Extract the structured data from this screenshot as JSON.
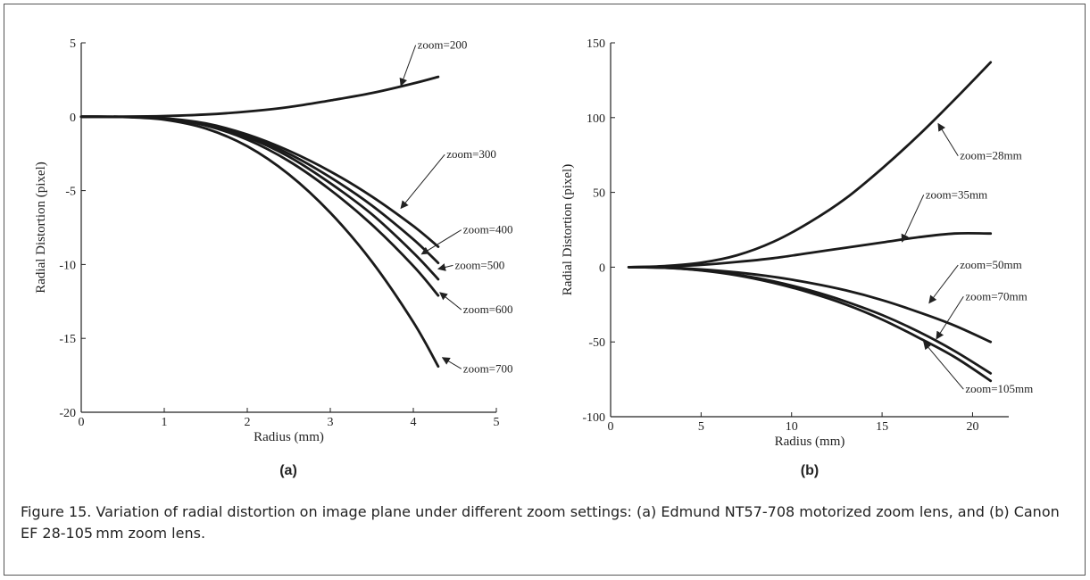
{
  "caption": "Figure 15. Variation of radial distortion on image plane under different zoom settings: (a) Edmund NT57-708 motorized zoom lens, and (b) Canon EF 28-105 mm zoom lens.",
  "chart_data": [
    {
      "type": "line",
      "panel_label": "(a)",
      "xlabel": "Radius (mm)",
      "ylabel": "Radial Distortion (pixel)",
      "xlim": [
        0,
        5
      ],
      "ylim": [
        -20,
        5
      ],
      "xticks": [
        0,
        1,
        2,
        3,
        4,
        5
      ],
      "yticks": [
        5,
        0,
        -5,
        -10,
        -15,
        -20
      ],
      "grid": false,
      "series": [
        {
          "name": "zoom=200",
          "x": [
            0,
            0.5,
            1,
            1.5,
            2,
            2.5,
            3,
            3.5,
            4,
            4.3
          ],
          "y": [
            0,
            0.01,
            0.05,
            0.15,
            0.35,
            0.65,
            1.1,
            1.6,
            2.25,
            2.7
          ]
        },
        {
          "name": "zoom=300",
          "x": [
            0,
            0.5,
            1,
            1.5,
            2,
            2.5,
            3,
            3.5,
            4,
            4.3
          ],
          "y": [
            0,
            -0.01,
            -0.1,
            -0.45,
            -1.2,
            -2.3,
            -3.7,
            -5.4,
            -7.4,
            -8.8
          ]
        },
        {
          "name": "zoom=400",
          "x": [
            0,
            0.5,
            1,
            1.5,
            2,
            2.5,
            3,
            3.5,
            4,
            4.3
          ],
          "y": [
            0,
            -0.01,
            -0.11,
            -0.5,
            -1.3,
            -2.5,
            -4.1,
            -6.0,
            -8.3,
            -9.9
          ]
        },
        {
          "name": "zoom=500",
          "x": [
            0,
            0.5,
            1,
            1.5,
            2,
            2.5,
            3,
            3.5,
            4,
            4.3
          ],
          "y": [
            0,
            -0.01,
            -0.12,
            -0.55,
            -1.4,
            -2.7,
            -4.5,
            -6.6,
            -9.2,
            -11.0
          ]
        },
        {
          "name": "zoom=600",
          "x": [
            0,
            0.5,
            1,
            1.5,
            2,
            2.5,
            3,
            3.5,
            4,
            4.3
          ],
          "y": [
            0,
            -0.01,
            -0.13,
            -0.6,
            -1.55,
            -3.0,
            -4.95,
            -7.3,
            -10.1,
            -12.1
          ]
        },
        {
          "name": "zoom=700",
          "x": [
            0,
            0.5,
            1,
            1.5,
            2,
            2.5,
            3,
            3.5,
            4,
            4.3
          ],
          "y": [
            0,
            -0.02,
            -0.2,
            -0.8,
            -2.0,
            -3.9,
            -6.5,
            -9.8,
            -13.9,
            -16.9
          ]
        }
      ],
      "annotations": [
        {
          "text": "zoom=200",
          "x": 4.05,
          "y": 4.6,
          "tx": 3.85,
          "ty": 2.1
        },
        {
          "text": "zoom=300",
          "x": 4.4,
          "y": -2.8,
          "tx": 3.85,
          "ty": -6.2
        },
        {
          "text": "zoom=400",
          "x": 4.6,
          "y": -7.9,
          "tx": 4.1,
          "ty": -9.3
        },
        {
          "text": "zoom=500",
          "x": 4.5,
          "y": -10.3,
          "tx": 4.3,
          "ty": -10.3
        },
        {
          "text": "zoom=600",
          "x": 4.6,
          "y": -13.3,
          "tx": 4.32,
          "ty": -11.9
        },
        {
          "text": "zoom=700",
          "x": 4.6,
          "y": -17.3,
          "tx": 4.35,
          "ty": -16.3
        }
      ]
    },
    {
      "type": "line",
      "panel_label": "(b)",
      "xlabel": "Radius (mm)",
      "ylabel": "Radial Distortion (pixel)",
      "xlim": [
        0,
        22
      ],
      "ylim": [
        -100,
        150
      ],
      "xticks": [
        0,
        5,
        10,
        15,
        20
      ],
      "yticks": [
        150,
        100,
        50,
        0,
        -50,
        -100
      ],
      "grid": false,
      "series": [
        {
          "name": "zoom=28mm",
          "x": [
            1,
            3,
            5,
            7,
            9,
            11,
            13,
            15,
            17,
            19,
            21
          ],
          "y": [
            0,
            0.8,
            3,
            8,
            17,
            30,
            46,
            66,
            88,
            112,
            137
          ]
        },
        {
          "name": "zoom=35mm",
          "x": [
            1,
            3,
            5,
            7,
            9,
            11,
            13,
            15,
            17,
            19,
            21
          ],
          "y": [
            0,
            0.4,
            1.5,
            3.5,
            6,
            9.5,
            13,
            16.5,
            20,
            22.5,
            22.5
          ]
        },
        {
          "name": "zoom=50mm",
          "x": [
            1,
            3,
            5,
            7,
            9,
            11,
            13,
            15,
            17,
            19,
            21
          ],
          "y": [
            0,
            -0.3,
            -1.5,
            -3.5,
            -6.5,
            -10.5,
            -15.5,
            -22,
            -30,
            -39,
            -50
          ]
        },
        {
          "name": "zoom=70mm",
          "x": [
            1,
            3,
            5,
            7,
            9,
            11,
            13,
            15,
            17,
            19,
            21
          ],
          "y": [
            0,
            -0.4,
            -2,
            -5,
            -9.5,
            -15.5,
            -23,
            -32,
            -43,
            -56,
            -71
          ]
        },
        {
          "name": "zoom=105mm",
          "x": [
            1,
            3,
            5,
            7,
            9,
            11,
            13,
            15,
            17,
            19,
            21
          ],
          "y": [
            0,
            -0.4,
            -2.2,
            -5.5,
            -10.5,
            -17,
            -25,
            -35,
            -47,
            -60,
            -76
          ]
        }
      ],
      "annotations": [
        {
          "text": "zoom=28mm",
          "x": 19.3,
          "y": 72,
          "tx": 18.1,
          "ty": 96
        },
        {
          "text": "zoom=35mm",
          "x": 17.4,
          "y": 46,
          "tx": 16.1,
          "ty": 17
        },
        {
          "text": "zoom=50mm",
          "x": 19.3,
          "y": -1,
          "tx": 17.6,
          "ty": -24
        },
        {
          "text": "zoom=70mm",
          "x": 19.6,
          "y": -22,
          "tx": 18.0,
          "ty": -48
        },
        {
          "text": "zoom=105mm",
          "x": 19.6,
          "y": -84,
          "tx": 17.3,
          "ty": -50
        }
      ]
    }
  ]
}
